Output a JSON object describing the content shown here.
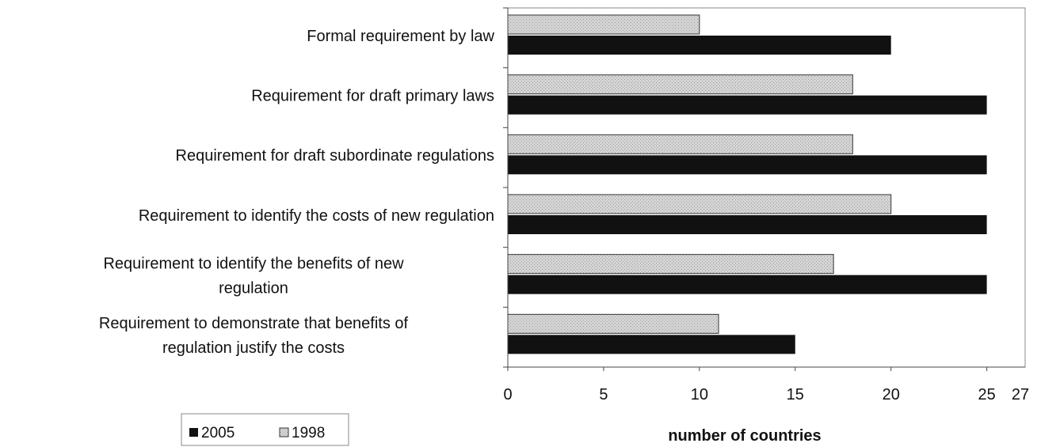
{
  "chart_data": {
    "type": "bar",
    "orientation": "horizontal",
    "categories": [
      "Formal requirement by law",
      "Requirement for draft primary laws",
      "Requirement for draft subordinate regulations",
      "Requirement to identify the costs of new regulation",
      "Requirement to identify the benefits of new regulation",
      "Requirement to demonstrate that benefits of regulation justify the costs"
    ],
    "series": [
      {
        "name": "1998",
        "values": [
          10,
          18,
          18,
          20,
          17,
          11
        ],
        "color": "#d2d2d2"
      },
      {
        "name": "2005",
        "values": [
          20,
          25,
          25,
          25,
          25,
          15
        ],
        "color": "#111111"
      }
    ],
    "xlabel": "number of countries",
    "ylabel": "",
    "xlim": [
      0,
      27
    ],
    "xticks": [
      "0",
      "5",
      "10",
      "15",
      "20",
      "25",
      "27"
    ],
    "legend": {
      "position": "bottom-left",
      "items": [
        "2005",
        "1998"
      ]
    },
    "grid": false
  }
}
